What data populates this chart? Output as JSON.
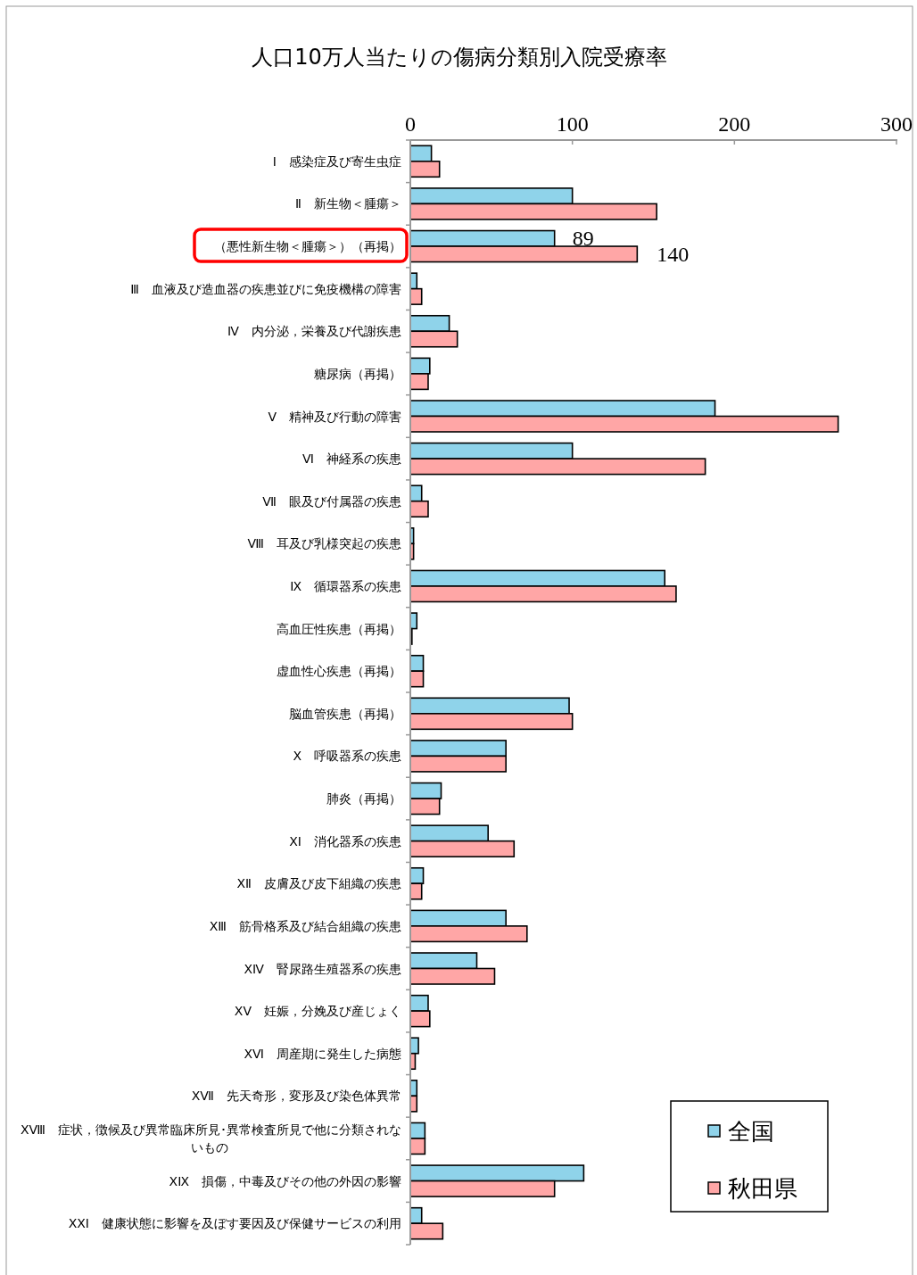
{
  "chart_data": {
    "type": "bar",
    "orientation": "horizontal",
    "title": "人口10万人当たりの傷病分類別入院受療率",
    "categories": [
      "Ⅰ　感染症及び寄生虫症",
      "Ⅱ　新生物＜腫瘍＞",
      "（悪性新生物＜腫瘍＞）（再掲）",
      "Ⅲ　血液及び造血器の疾患並びに免疫機構の障害",
      "Ⅳ　内分泌，栄養及び代謝疾患",
      "糖尿病（再掲）",
      "Ⅴ　精神及び行動の障害",
      "Ⅵ　神経系の疾患",
      "Ⅶ　眼及び付属器の疾患",
      "Ⅷ　耳及び乳様突起の疾患",
      "Ⅸ　循環器系の疾患",
      "高血圧性疾患（再掲）",
      "虚血性心疾患（再掲）",
      "脳血管疾患（再掲）",
      "Ⅹ　呼吸器系の疾患",
      "肺炎（再掲）",
      "ⅩⅠ　消化器系の疾患",
      "ⅩⅡ　皮膚及び皮下組織の疾患",
      "ⅩⅢ　筋骨格系及び結合組織の疾患",
      "ⅩⅣ　腎尿路生殖器系の疾患",
      "ⅩⅤ　妊娠，分娩及び産じょく",
      "ⅩⅥ　周産期に発生した病態",
      "ⅩⅦ　先天奇形，変形及び染色体異常",
      "ⅩⅧ　症状，徴候及び異常臨床所見･異常検査所見で他に分類されないもの",
      "ⅩⅨ　損傷，中毒及びその他の外因の影響",
      "ⅩⅩⅠ　健康状態に影響を及ぼす要因及び保健サービスの利用"
    ],
    "series": [
      {
        "name": "全国",
        "color": "#8fd3ea",
        "values": [
          13,
          100,
          89,
          4,
          24,
          12,
          188,
          100,
          7,
          2,
          157,
          4,
          8,
          98,
          59,
          19,
          48,
          8,
          59,
          41,
          11,
          5,
          4,
          9,
          107,
          7
        ],
        "value_labels": [
          null,
          null,
          "89",
          null,
          null,
          null,
          null,
          null,
          null,
          null,
          null,
          null,
          null,
          null,
          null,
          null,
          null,
          null,
          null,
          null,
          null,
          null,
          null,
          null,
          null,
          null
        ]
      },
      {
        "name": "秋田県",
        "color": "#ffa6a6",
        "values": [
          18,
          152,
          140,
          7,
          29,
          11,
          264,
          182,
          11,
          2,
          164,
          1,
          8,
          100,
          59,
          18,
          64,
          7,
          72,
          52,
          12,
          3,
          4,
          9,
          89,
          20
        ],
        "value_labels": [
          null,
          null,
          "140",
          null,
          null,
          null,
          null,
          null,
          null,
          null,
          null,
          null,
          null,
          null,
          null,
          null,
          null,
          null,
          null,
          null,
          null,
          null,
          null,
          null,
          null,
          null
        ]
      }
    ],
    "xlim": [
      0,
      300
    ],
    "xticks": [
      0,
      100,
      200,
      300
    ],
    "grid": false,
    "legend": "bottom right"
  }
}
